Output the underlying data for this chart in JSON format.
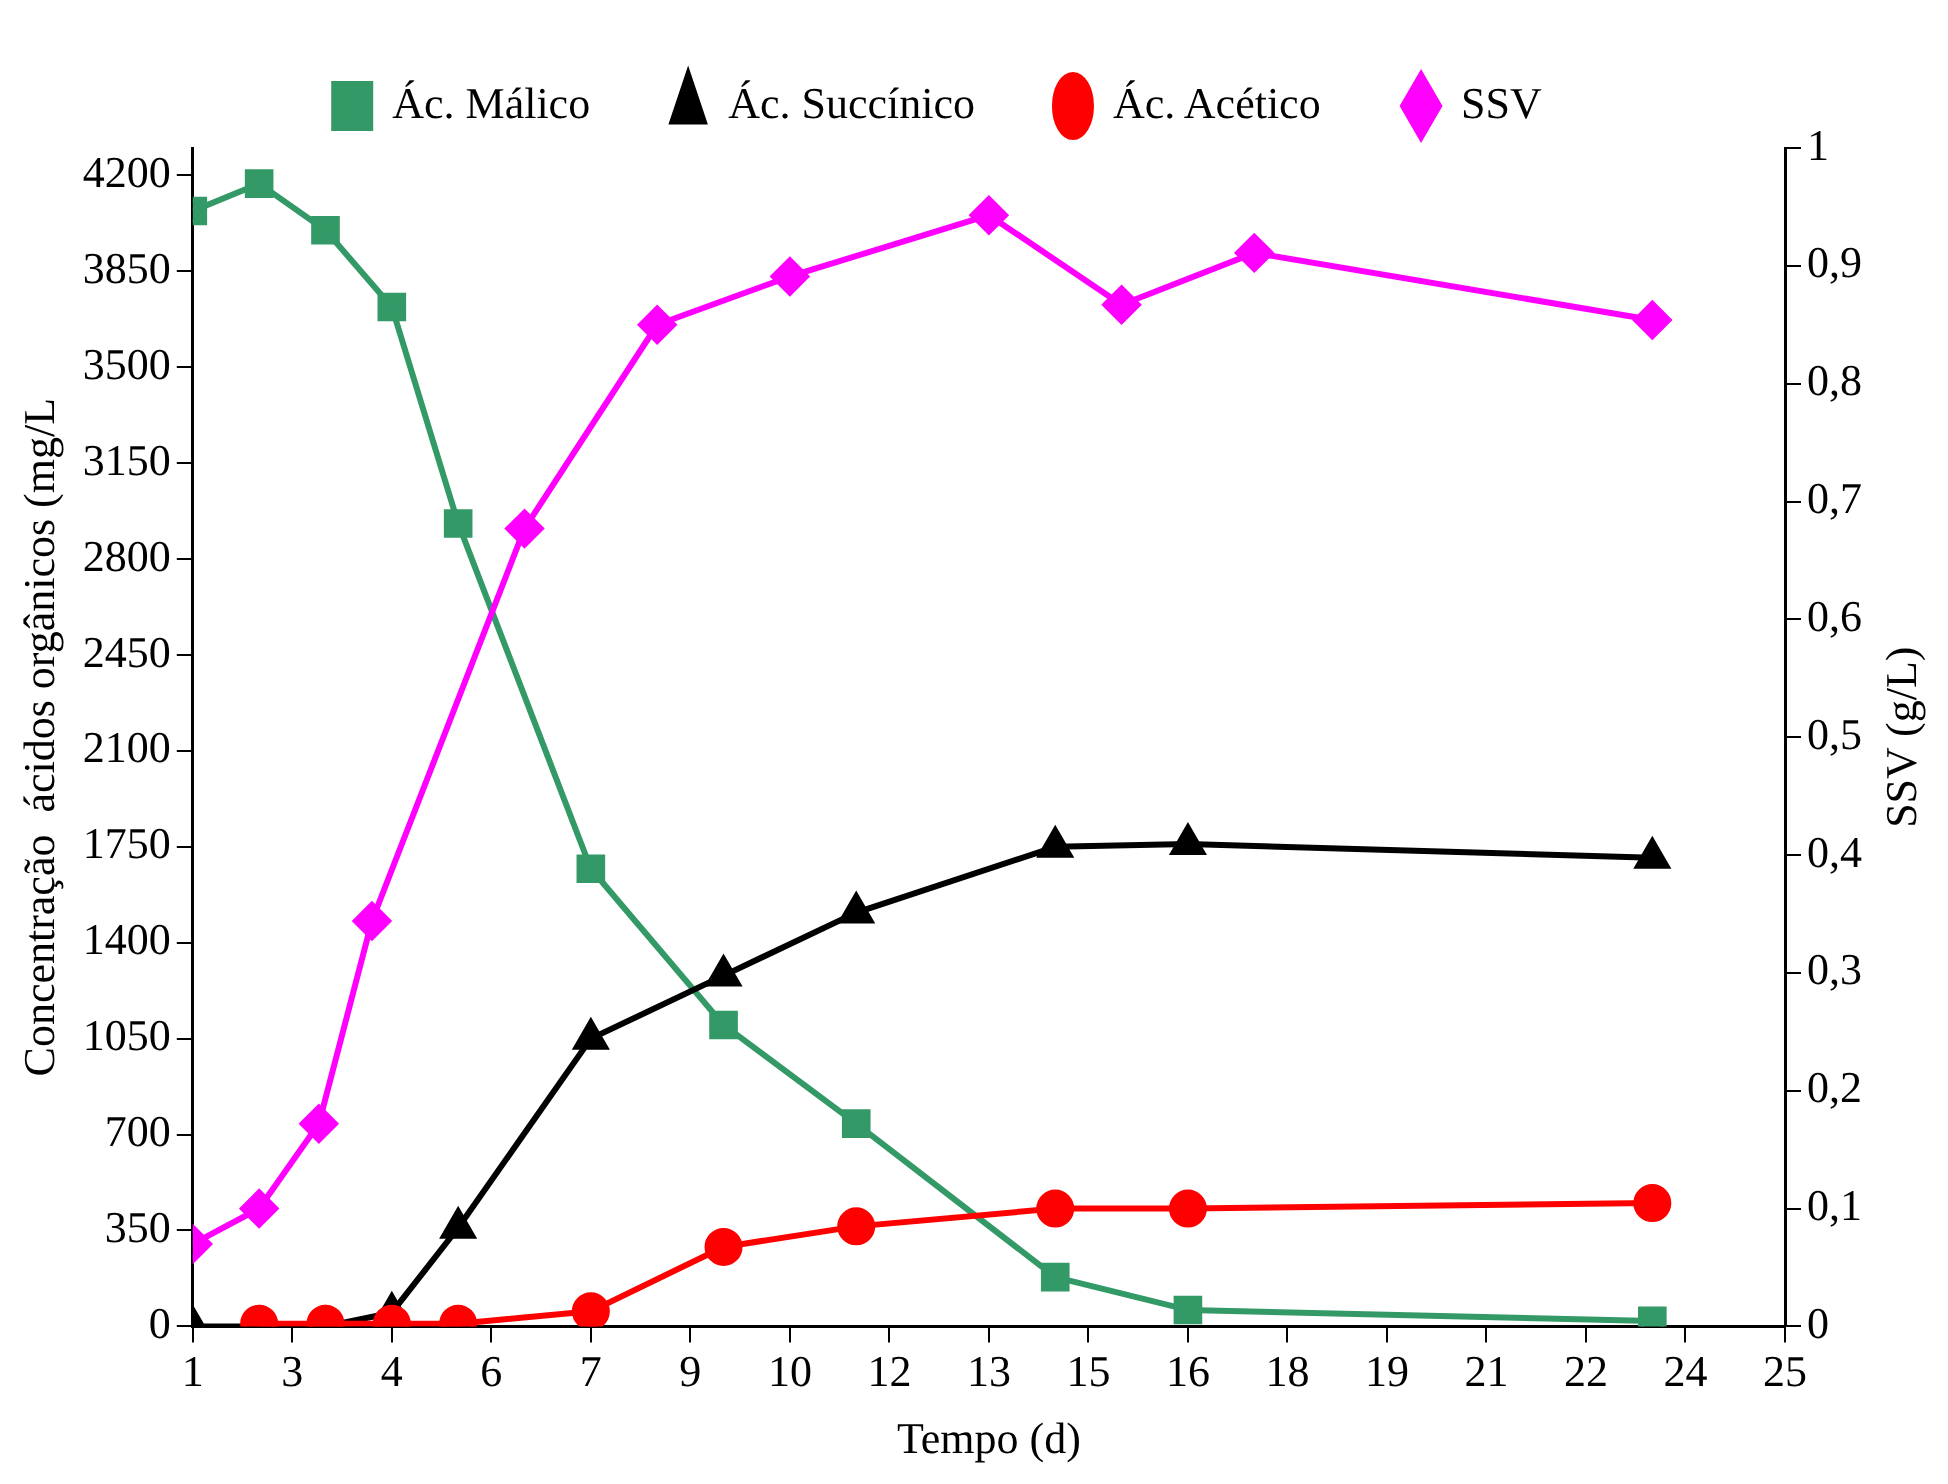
{
  "chart_data": {
    "type": "line",
    "xlabel": "Tempo (d)",
    "ylabel": "Concentração  ácidos orgânicos (mg/L",
    "y2label": "SSV (g/L)",
    "xlim": [
      1,
      25
    ],
    "xticks": [
      1,
      {
        "value": 2.5,
        "label": "3"
      },
      4,
      {
        "value": 5.5,
        "label": "6"
      },
      7,
      {
        "value": 8.5,
        "label": "9"
      },
      10,
      {
        "value": 11.5,
        "label": "12"
      },
      13,
      {
        "value": 14.5,
        "label": "15"
      },
      16,
      {
        "value": 17.5,
        "label": "18"
      },
      19,
      {
        "value": 20.5,
        "label": "21"
      },
      22,
      {
        "value": 23.5,
        "label": "24"
      },
      25
    ],
    "ylim": [
      0,
      4300
    ],
    "yticks": [
      0,
      350,
      700,
      1050,
      1400,
      1750,
      2100,
      2450,
      2800,
      3150,
      3500,
      3850,
      4200
    ],
    "y2lim": [
      0,
      1
    ],
    "y2ticks": [
      0,
      {
        "value": 0.1,
        "label": "0,1"
      },
      {
        "value": 0.2,
        "label": "0,2"
      },
      {
        "value": 0.3,
        "label": "0,3"
      },
      {
        "value": 0.4,
        "label": "0,4"
      },
      {
        "value": 0.5,
        "label": "0,5"
      },
      {
        "value": 0.6,
        "label": "0,6"
      },
      {
        "value": 0.7,
        "label": "0,7"
      },
      {
        "value": 0.8,
        "label": "0,8"
      },
      {
        "value": 0.9,
        "label": "0,9"
      },
      1
    ],
    "grid": false,
    "legend": "top",
    "line_style": "solid",
    "series": [
      {
        "name": "Ác. Málico",
        "color": "#339966",
        "marker": "square",
        "x": [
          1,
          2,
          3,
          4,
          5,
          7,
          9,
          11,
          14,
          16,
          23
        ],
        "values": [
          4070,
          4170,
          4000,
          3720,
          2930,
          1670,
          1100,
          740,
          180,
          60,
          20
        ]
      },
      {
        "name": "Ác. Succínico",
        "color": "#000000",
        "marker": "triangle",
        "x": [
          1,
          2,
          3,
          4,
          5,
          7,
          9,
          11,
          14,
          16,
          23
        ],
        "values": [
          0,
          0,
          0,
          50,
          360,
          1050,
          1280,
          1510,
          1750,
          1760,
          1710
        ]
      },
      {
        "name": "Ác. Acético",
        "color": "#ff0000",
        "marker": "circle",
        "x": [
          2,
          3,
          4,
          5,
          7,
          9,
          11,
          14,
          16,
          23
        ],
        "values": [
          10,
          10,
          10,
          10,
          55,
          290,
          365,
          430,
          430,
          450
        ]
      },
      {
        "name": "SSV",
        "color": "#ff00ff",
        "marker": "diamond",
        "axis": "y2",
        "x": [
          1,
          2,
          2.9,
          3.7,
          6,
          8,
          10,
          13,
          15,
          17,
          23
        ],
        "values": [
          0.07,
          0.1,
          0.172,
          0.344,
          0.677,
          0.85,
          0.891,
          0.943,
          0.867,
          0.911,
          0.854
        ]
      }
    ]
  }
}
